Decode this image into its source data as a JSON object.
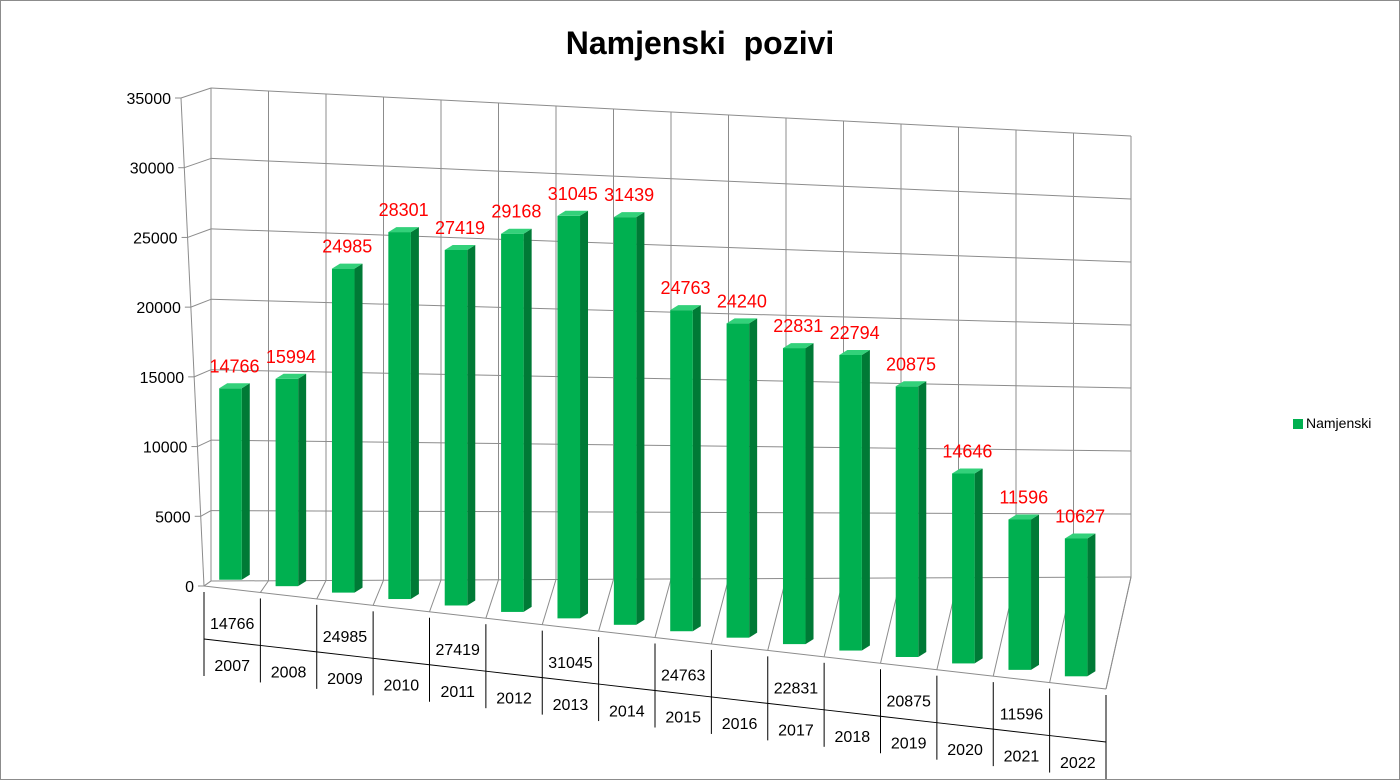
{
  "chart_data": {
    "type": "bar",
    "title": "Namjenski  pozivi",
    "categories": [
      "2007",
      "2008",
      "2009",
      "2010",
      "2011",
      "2012",
      "2013",
      "2014",
      "2015",
      "2016",
      "2017",
      "2018",
      "2019",
      "2020",
      "2021",
      "2022"
    ],
    "series": [
      {
        "name": "Namjenski",
        "values": [
          14766,
          15994,
          24985,
          28301,
          27419,
          29168,
          31045,
          31439,
          24763,
          24240,
          22831,
          22794,
          20875,
          14646,
          11596,
          10627
        ]
      }
    ],
    "data_labels": [
      "14766",
      "15994",
      "24985",
      "28301",
      "27419",
      "29168",
      "31045",
      "31439",
      "24763",
      "24240",
      "22831",
      "22794",
      "20875",
      "14646",
      "11596",
      "10627"
    ],
    "table_values": [
      "14766",
      "",
      "24985",
      "",
      "27419",
      "",
      "31045",
      "",
      "24763",
      "",
      "22831",
      "",
      "20875",
      "",
      "11596",
      ""
    ],
    "ylim": [
      0,
      35000
    ],
    "yticks": [
      "0",
      "5000",
      "10000",
      "15000",
      "20000",
      "25000",
      "30000",
      "35000"
    ],
    "ytick_values": [
      0,
      5000,
      10000,
      15000,
      20000,
      25000,
      30000,
      35000
    ],
    "xlabel": "",
    "ylabel": "",
    "grid": true,
    "legend_position": "right",
    "style": "3d-column",
    "colors": {
      "bar_front": "#00b050",
      "bar_side": "#007a36",
      "bar_top": "#33d17a",
      "data_label": "#ff0000",
      "grid": "#8c8c8c"
    }
  }
}
